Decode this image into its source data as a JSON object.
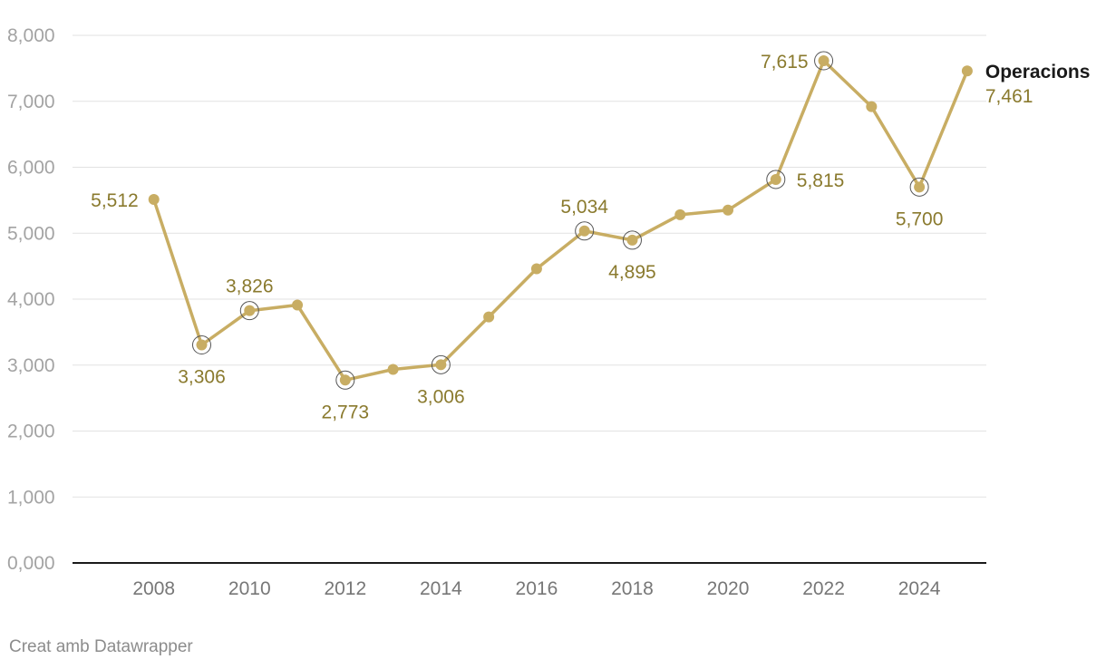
{
  "chart_data": {
    "type": "line",
    "x": [
      2008,
      2009,
      2010,
      2011,
      2012,
      2013,
      2014,
      2015,
      2016,
      2017,
      2018,
      2019,
      2020,
      2021,
      2022,
      2023,
      2024,
      2025
    ],
    "series": [
      {
        "name": "Operacions",
        "values": [
          5512,
          3306,
          3826,
          3910,
          2773,
          2935,
          3006,
          3730,
          4460,
          5034,
          4895,
          5280,
          5350,
          5815,
          7615,
          6920,
          5700,
          7461
        ],
        "color": "#c8ad63",
        "last_value_label": "7,461"
      }
    ],
    "xticks": [
      "2008",
      "2010",
      "2012",
      "2014",
      "2016",
      "2018",
      "2020",
      "2022",
      "2024"
    ],
    "yticks": [
      "0,000",
      "1,000",
      "2,000",
      "3,000",
      "4,000",
      "5,000",
      "6,000",
      "7,000",
      "8,000"
    ],
    "ylim": [
      0,
      8000
    ],
    "xlim": [
      2006.3,
      2025.4
    ],
    "grid": true,
    "annotations": [
      {
        "x": 2008,
        "value": 5512,
        "label": "5,512",
        "highlight": false,
        "pos": "left"
      },
      {
        "x": 2009,
        "value": 3306,
        "label": "3,306",
        "highlight": true,
        "pos": "below"
      },
      {
        "x": 2010,
        "value": 3826,
        "label": "3,826",
        "highlight": true,
        "pos": "above"
      },
      {
        "x": 2012,
        "value": 2773,
        "label": "2,773",
        "highlight": true,
        "pos": "below"
      },
      {
        "x": 2014,
        "value": 3006,
        "label": "3,006",
        "highlight": true,
        "pos": "below"
      },
      {
        "x": 2017,
        "value": 5034,
        "label": "5,034",
        "highlight": true,
        "pos": "above"
      },
      {
        "x": 2018,
        "value": 4895,
        "label": "4,895",
        "highlight": true,
        "pos": "below"
      },
      {
        "x": 2021,
        "value": 5815,
        "label": "5,815",
        "highlight": true,
        "pos": "right"
      },
      {
        "x": 2022,
        "value": 7615,
        "label": "7,615",
        "highlight": true,
        "pos": "left"
      },
      {
        "x": 2024,
        "value": 5700,
        "label": "5,700",
        "highlight": true,
        "pos": "below"
      }
    ],
    "colors": {
      "line": "#c8ad63",
      "label": "#8a7a2e",
      "grid": "#e2e2e2",
      "axis": "#1a1a1a"
    }
  },
  "footer": {
    "credit": "Creat amb Datawrapper"
  }
}
